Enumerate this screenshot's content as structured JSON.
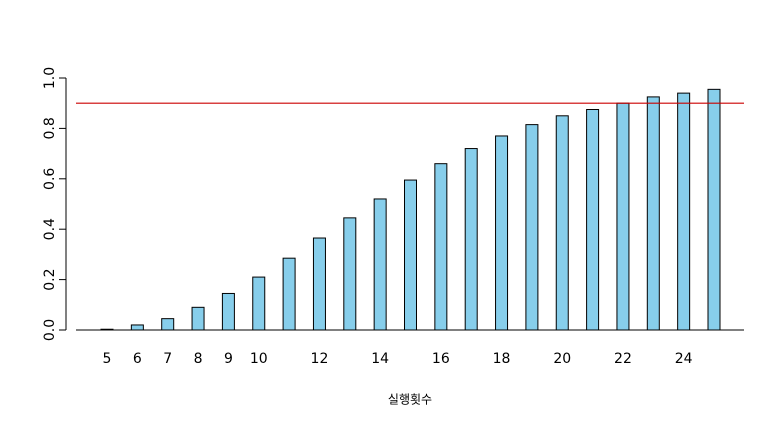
{
  "chart_data": {
    "type": "bar",
    "x_label": "실행횟수",
    "categories": [
      "5",
      "6",
      "7",
      "8",
      "9",
      "10",
      null,
      "12",
      null,
      "14",
      null,
      "16",
      null,
      "18",
      null,
      "20",
      null,
      "22",
      null,
      "24",
      null
    ],
    "values": [
      0.003,
      0.02,
      0.045,
      0.09,
      0.145,
      0.21,
      0.285,
      0.365,
      0.445,
      0.52,
      0.595,
      0.66,
      0.72,
      0.77,
      0.815,
      0.85,
      0.875,
      0.9,
      0.925,
      0.94,
      0.955
    ],
    "color": "#87ceeb",
    "ylim": [
      0,
      1
    ],
    "yticks": [
      {
        "value": 0,
        "label": "0.0"
      },
      0.2,
      0.4,
      0.6,
      0.8,
      {
        "value": 1,
        "label": "1.0"
      }
    ],
    "hline": 0.9,
    "hline_color": "#cc0000"
  }
}
